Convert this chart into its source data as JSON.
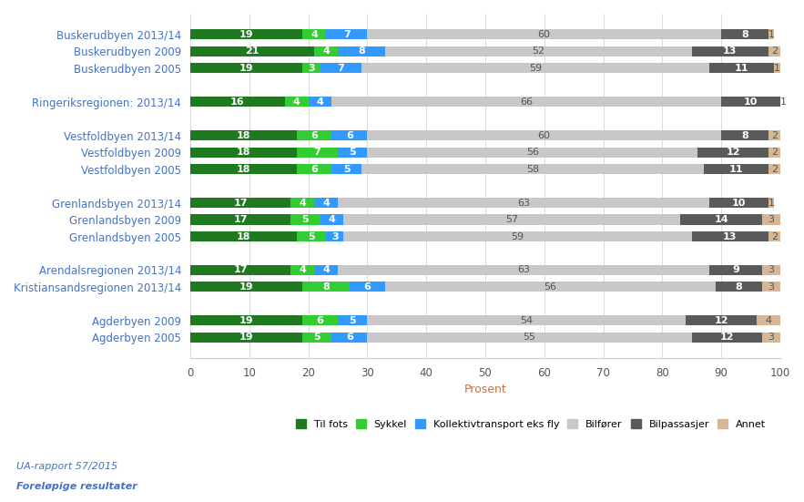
{
  "categories": [
    "Buskerudbyen 2013/14",
    "Buskerudbyen 2009",
    "Buskerudbyen 2005",
    "",
    "Ringeriksregionen: 2013/14",
    "",
    "Vestfoldbyen 2013/14",
    "Vestfoldbyen 2009",
    "Vestfoldbyen 2005",
    "",
    "Grenlandsbyen 2013/14",
    "Grenlandsbyen 2009",
    "Grenlandsbyen 2005",
    "",
    "Arendalsregionen 2013/14",
    "Kristiansandsregionen 2013/14",
    "",
    "Agderbyen 2009",
    "Agderbyen 2005"
  ],
  "data": [
    [
      19,
      4,
      7,
      60,
      8,
      1
    ],
    [
      21,
      4,
      8,
      52,
      13,
      2
    ],
    [
      19,
      3,
      7,
      59,
      11,
      1
    ],
    [
      0,
      0,
      0,
      0,
      0,
      0
    ],
    [
      16,
      4,
      4,
      66,
      10,
      1
    ],
    [
      0,
      0,
      0,
      0,
      0,
      0
    ],
    [
      18,
      6,
      6,
      60,
      8,
      2
    ],
    [
      18,
      7,
      5,
      56,
      12,
      2
    ],
    [
      18,
      6,
      5,
      58,
      11,
      2
    ],
    [
      0,
      0,
      0,
      0,
      0,
      0
    ],
    [
      17,
      4,
      4,
      63,
      10,
      1
    ],
    [
      17,
      5,
      4,
      57,
      14,
      3
    ],
    [
      18,
      5,
      3,
      59,
      13,
      2
    ],
    [
      0,
      0,
      0,
      0,
      0,
      0
    ],
    [
      17,
      4,
      4,
      63,
      9,
      3
    ],
    [
      19,
      8,
      6,
      56,
      8,
      3
    ],
    [
      0,
      0,
      0,
      0,
      0,
      0
    ],
    [
      19,
      6,
      5,
      54,
      12,
      4
    ],
    [
      19,
      5,
      6,
      55,
      12,
      3
    ]
  ],
  "colors": [
    "#1f7a1f",
    "#33cc33",
    "#3399ff",
    "#c8c8c8",
    "#5a5a5a",
    "#d4b896"
  ],
  "legend_labels": [
    "Til fots",
    "Sykkel",
    "Kollektivtransport eks fly",
    "Bilfører",
    "Bilpassasjer",
    "Annet"
  ],
  "xlabel": "Prosent",
  "xlim": [
    0,
    100
  ],
  "xticks": [
    0,
    10,
    20,
    30,
    40,
    50,
    60,
    70,
    80,
    90,
    100
  ],
  "note_line1": "UA-rapport 57/2015",
  "note_line2": "Foreløpige resultater",
  "bar_height": 0.6,
  "label_color": "#4472c4",
  "xlabel_color": "#c0734a"
}
